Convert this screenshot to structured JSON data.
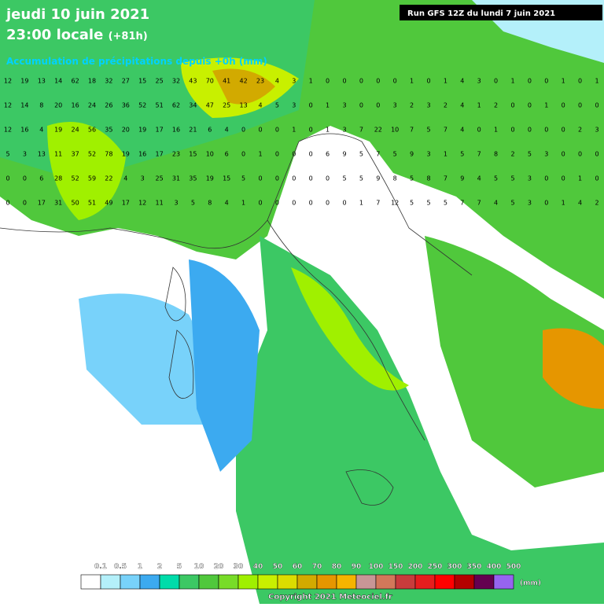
{
  "header": {
    "title_line1": "jeudi 10 juin 2021",
    "title_line2": "23:00 locale",
    "lead": "(+81h)",
    "subtitle": "Accumulation de précipitations depuis +0h (mm)",
    "run": "Run GFS 12Z du lundi 7 juin 2021"
  },
  "legend": {
    "levels": [
      "0.1",
      "0.5",
      "1",
      "2",
      "5",
      "10",
      "20",
      "30",
      "40",
      "50",
      "60",
      "70",
      "80",
      "90",
      "100",
      "150",
      "200",
      "250",
      "300",
      "350",
      "400",
      "500"
    ],
    "colors": [
      "#ffffff",
      "#b4f0fa",
      "#78d2fa",
      "#3caaf0",
      "#00dcaa",
      "#3cc864",
      "#50c83c",
      "#78dc28",
      "#a0f000",
      "#c8f000",
      "#dcdc00",
      "#d2aa00",
      "#e69600",
      "#f5b400",
      "#c89696",
      "#d2785a",
      "#c83c3c",
      "#e61e1e",
      "#ff0000",
      "#b40000",
      "#640050",
      "#9664f0"
    ],
    "unit": "(mm)"
  },
  "grid_rows": [
    [
      "12",
      "19",
      "13",
      "14",
      "62",
      "18",
      "32",
      "27",
      "15",
      "25",
      "32",
      "43",
      "70",
      "41",
      "42",
      "23",
      "4",
      "3",
      "1",
      "0",
      "0",
      "0",
      "0",
      "0",
      "1",
      "0",
      "1",
      "4",
      "3",
      "0",
      "1",
      "0",
      "0",
      "1",
      "0",
      "1"
    ],
    [
      "12",
      "14",
      "8",
      "20",
      "16",
      "24",
      "26",
      "36",
      "52",
      "51",
      "62",
      "34",
      "47",
      "25",
      "13",
      "4",
      "5",
      "3",
      "0",
      "1",
      "3",
      "0",
      "0",
      "3",
      "2",
      "3",
      "2",
      "4",
      "1",
      "2",
      "0",
      "0",
      "1",
      "0",
      "0",
      "0"
    ],
    [
      "12",
      "16",
      "4",
      "19",
      "24",
      "56",
      "35",
      "20",
      "19",
      "17",
      "16",
      "21",
      "6",
      "4",
      "0",
      "0",
      "0",
      "1",
      "0",
      "1",
      "3",
      "7",
      "22",
      "10",
      "7",
      "5",
      "7",
      "4",
      "0",
      "1",
      "0",
      "0",
      "0",
      "0",
      "2",
      "3"
    ],
    [
      "5",
      "3",
      "13",
      "11",
      "37",
      "52",
      "78",
      "19",
      "16",
      "17",
      "23",
      "15",
      "10",
      "6",
      "0",
      "1",
      "0",
      "0",
      "0",
      "6",
      "9",
      "5",
      "7",
      "5",
      "9",
      "3",
      "1",
      "5",
      "7",
      "8",
      "2",
      "5",
      "3",
      "0",
      "0",
      "0"
    ],
    [
      "0",
      "0",
      "6",
      "28",
      "52",
      "59",
      "22",
      "4",
      "3",
      "25",
      "31",
      "35",
      "19",
      "15",
      "5",
      "0",
      "0",
      "0",
      "0",
      "0",
      "5",
      "5",
      "9",
      "8",
      "5",
      "8",
      "7",
      "9",
      "4",
      "5",
      "5",
      "3",
      "0",
      "0",
      "1",
      "0"
    ],
    [
      "0",
      "0",
      "17",
      "31",
      "50",
      "51",
      "49",
      "17",
      "12",
      "11",
      "3",
      "5",
      "8",
      "4",
      "1",
      "0",
      "0",
      "0",
      "0",
      "0",
      "0",
      "1",
      "7",
      "12",
      "5",
      "5",
      "5",
      "7",
      "7",
      "4",
      "5",
      "3",
      "0",
      "1",
      "4",
      "2"
    ]
  ],
  "footer": {
    "copyright": "Copyright 2021 Meteociel.fr"
  }
}
